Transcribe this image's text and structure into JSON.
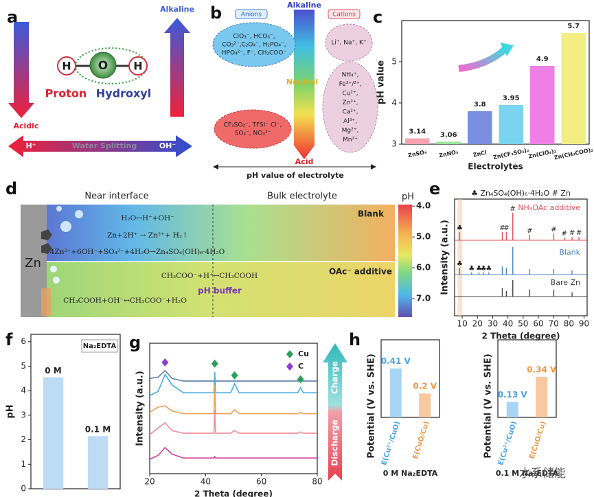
{
  "panel_labels": [
    "a",
    "b",
    "c",
    "d",
    "e",
    "f",
    "g",
    "h"
  ],
  "panel_a": {
    "alkaline": "Alkaline",
    "atoms": [
      "H",
      "O",
      "H"
    ],
    "proton": "Proton",
    "hydroxyl": "Hydroxyl",
    "acidic": "Acidic",
    "h_plus": "H⁺",
    "water_splitting": "Water Splitting",
    "oh_minus": "OH⁻"
  },
  "panel_b": {
    "anions": "Anions",
    "cations": "Cations",
    "alkaline": "Alkaline",
    "neutral": "Neutral",
    "acid": "Acid",
    "anions_alkaline": [
      "ClO₃⁻, HCO₃⁻,",
      "CO₃²⁻,C₂O₄⁻, H₂PO₄⁻,",
      "HPO₄²⁻, F⁻, CH₃COO⁻"
    ],
    "anions_acid": [
      "CF₃SO₃⁻, TFSI⁻ Cl⁻,",
      "SO₄⁻, NO₃²⁻"
    ],
    "cations_alkaline": [
      "Li⁺, Na⁺, K⁺"
    ],
    "cations_acid": [
      "NH₄⁺,",
      "Fe³⁺/²⁺,",
      "Cu²⁺,",
      "Zn²⁺,",
      "Ca²⁺,",
      "Al³⁺,",
      "Mg²⁺,",
      "Mn²⁺"
    ],
    "axis_label": "pH value of electrolyte"
  },
  "panel_d": {
    "near": "Near interface",
    "bulk": "Bulk electrolyte",
    "zn": "Zn",
    "blank": "Blank",
    "additive": "OAc⁻ additive",
    "buffer": "pH buffer",
    "blank_equations": [
      "H₂O↔H⁺+OH⁻",
      "Zn+2H⁺ → Zn²⁺+ H₂↑",
      "4Zn²⁺+6OH⁻+SO₄²⁻+4H₂O→Zn₄SO₄(OH)₆·4H₂O"
    ],
    "additive_equations": [
      "CH₃COO⁻+H⁺↔CH₃COOH",
      "CH₃COOH+OH⁻↔CH₃COO⁻+H₂O"
    ],
    "colorbar": {
      "label": "pH",
      "lim": [
        3.95,
        7.6
      ],
      "ticks": [
        {
          "value": 4,
          "label": "4.0"
        },
        {
          "value": 5,
          "label": "5.0"
        },
        {
          "value": 6,
          "label": "6.0"
        },
        {
          "value": 7,
          "label": "7.0"
        }
      ]
    }
  },
  "panel_g_annotations": {
    "charge": "Charge",
    "discharge": "Discharge"
  },
  "watermark": "水系储能",
  "chart_data": [
    {
      "type": "bar",
      "ylabel": "pH value",
      "xlabel": "Electrolytes",
      "categories": [
        "ZnSO₄",
        "ZnNO₃",
        "ZnCl",
        "Zn(CF₃SO₃)₂",
        "Zn(ClO₄)₂",
        "Zn(CH₃COO)₂"
      ],
      "values": [
        3.14,
        3.06,
        3.8,
        3.95,
        4.9,
        5.7
      ],
      "colors": [
        "#f4a3b0",
        "#9be39b",
        "#7a8fe0",
        "#79d4ef",
        "#ef7fe6",
        "#f2ee84"
      ],
      "ylim": [
        3,
        6
      ],
      "yticks": [
        3,
        4,
        5
      ]
    },
    {
      "type": "stem",
      "xlabel": "2 Theta (degree)",
      "ylabel": "Intensity (a.u.)",
      "annotation": "♣ Zn₄SO₄(OH)₆·4H₂O  # Zn",
      "xlim": [
        5,
        92
      ],
      "xticks": [
        10,
        20,
        30,
        40,
        50,
        60,
        70,
        80,
        90
      ],
      "series": [
        {
          "name": "NH₄OAc additive",
          "color": "#e0505a",
          "x": [
            8.3,
            36.3,
            39,
            43.2,
            54.3,
            70.1,
            77,
            82.1,
            86.6
          ],
          "values": [
            3,
            3,
            3,
            10,
            2,
            2.5,
            1,
            1.2,
            1.2
          ],
          "peak_labels": [
            "♣",
            "#",
            "#",
            "#",
            "#",
            "#",
            "#",
            "#",
            "#"
          ]
        },
        {
          "name": "Blank",
          "color": "#4a86c0",
          "x": [
            8.3,
            16.2,
            21,
            24,
            27.5,
            36.3,
            39,
            43.2,
            54.3,
            70.1,
            82.1
          ],
          "values": [
            2.5,
            0.8,
            0.8,
            0.8,
            0.8,
            3,
            2.5,
            10,
            2,
            2,
            1.5
          ],
          "peak_labels": [
            "♣",
            "♣",
            "♣",
            "♣",
            "♣",
            null,
            null,
            null,
            null,
            null,
            null
          ]
        },
        {
          "name": "Bare Zn",
          "color": "#444444",
          "x": [
            36.3,
            39,
            43.2,
            54.3,
            70.1,
            82.1
          ],
          "values": [
            3,
            2,
            6,
            2.5,
            2.5,
            1.5
          ]
        }
      ]
    },
    {
      "type": "bar",
      "ylabel": "pH",
      "legend": "Na₂EDTA",
      "categories": [
        "0 M",
        "0.1 M"
      ],
      "values": [
        4.55,
        2.15
      ],
      "color": "#bcdcf5",
      "ylim": [
        0,
        6.3
      ],
      "yticks": [
        0,
        1,
        2,
        3,
        4,
        5,
        6
      ]
    },
    {
      "type": "line",
      "xlabel": "2 Theta (degree)",
      "ylabel": "Intensity (a.u.)",
      "xlim": [
        20,
        80
      ],
      "xticks": [
        20,
        40,
        60,
        80
      ],
      "ylim": [
        0,
        10
      ],
      "x": [
        20,
        23,
        25.5,
        28,
        32,
        40,
        43,
        43.3,
        43.6,
        49,
        50.4,
        52,
        73,
        74,
        75,
        80
      ],
      "series": [
        {
          "color": "#5b7fa6",
          "values": [
            7.3,
            7.4,
            7.9,
            7.3,
            7.1,
            7.1,
            7.1,
            7.1,
            7.1,
            7.1,
            7.1,
            7.1,
            7.1,
            7.1,
            7.1,
            7.1
          ]
        },
        {
          "color": "#45aee0",
          "values": [
            6.0,
            6.3,
            7.6,
            6.8,
            6.2,
            6.2,
            6.2,
            7.8,
            6.2,
            6.2,
            6.9,
            6.2,
            6.2,
            6.6,
            6.2,
            6.2
          ]
        },
        {
          "color": "#f0a050",
          "values": [
            4.7,
            5.1,
            5.2,
            4.8,
            4.6,
            4.6,
            4.6,
            6.8,
            4.6,
            4.6,
            4.9,
            4.6,
            4.6,
            4.7,
            4.6,
            4.6
          ]
        },
        {
          "color": "#f08a9a",
          "values": [
            3.0,
            3.5,
            3.9,
            3.3,
            3.1,
            3.1,
            3.1,
            4.9,
            3.1,
            3.1,
            3.3,
            3.1,
            3.1,
            3.2,
            3.1,
            3.1
          ]
        },
        {
          "color": "#d0409a",
          "values": [
            1.1,
            1.4,
            2.0,
            1.5,
            1.2,
            1.2,
            1.2,
            1.3,
            1.2,
            1.2,
            1.2,
            1.2,
            1.2,
            1.2,
            1.2,
            1.2
          ]
        }
      ],
      "markers": [
        {
          "name": "Cu",
          "color": "#2ca05a",
          "x": [
            43.3,
            50.4,
            74
          ]
        },
        {
          "name": "C",
          "color": "#8a3fd1",
          "x": [
            25.5
          ]
        }
      ]
    },
    {
      "type": "bar",
      "ylabel": "Potential (V vs. SHE)",
      "caption": "0 M Na₂EDTA",
      "categories": [
        "E(Cu²⁺/CuO)",
        "E(CuO/Cu)"
      ],
      "values": [
        0.41,
        0.2
      ],
      "value_labels": [
        "0.41 V",
        "0.2 V"
      ],
      "colors": [
        "#a8d4f5",
        "#f8c8a0"
      ],
      "value_label_colors": [
        "#4aa3e8",
        "#f0964a"
      ],
      "ylim": [
        0,
        0.65
      ]
    },
    {
      "type": "bar",
      "ylabel": "Potential (V vs. SHE)",
      "caption": "0.1 M Na₂EDTA",
      "categories": [
        "E(Cu²⁺/CuO)",
        "E(CuO/Cu)"
      ],
      "values": [
        0.13,
        0.34
      ],
      "value_labels": [
        "0.13 V",
        "0.34 V"
      ],
      "colors": [
        "#a8d4f5",
        "#f8c8a0"
      ],
      "value_label_colors": [
        "#4aa3e8",
        "#f0964a"
      ],
      "ylim": [
        0,
        0.65
      ]
    }
  ]
}
